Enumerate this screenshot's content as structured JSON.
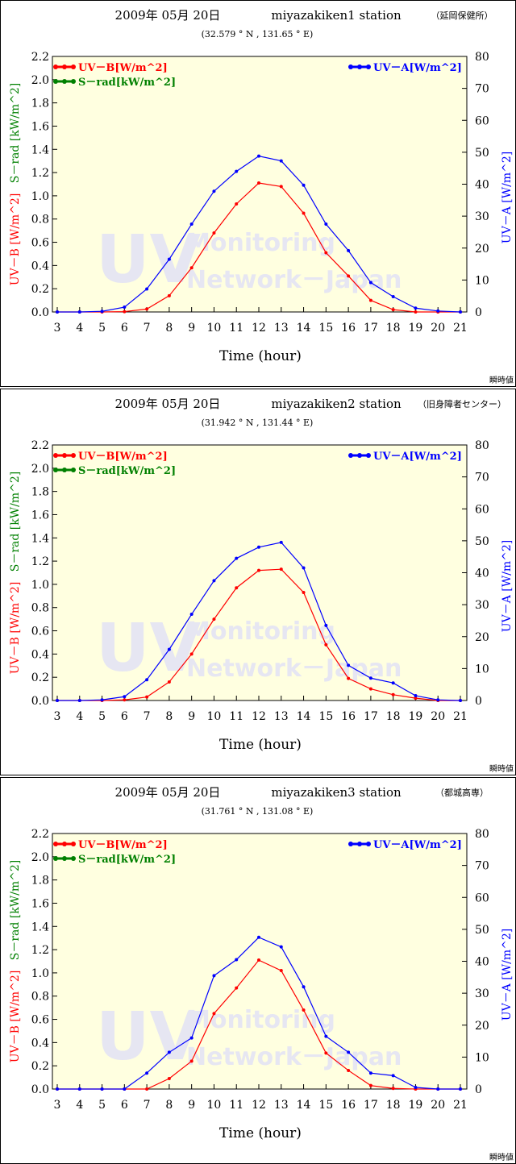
{
  "chart_data": [
    {
      "type": "line",
      "title": "2009年 05月 20日",
      "station": "miyazakiken1 station",
      "location": "（延岡保健所）",
      "coords": "(32.579 ° N , 131.65 ° E)",
      "xlabel": "Time (hour)",
      "ylabel_left_uvb": "UV－B [W/m^2]",
      "ylabel_left_srad": "S－rad [kW/m^2]",
      "ylabel_right": "UV－A [W/m^2]",
      "note": "瞬時値",
      "watermark_big": "UV",
      "watermark_line1": "Monitoring",
      "watermark_line2": "Network－Japan",
      "x": [
        3,
        4,
        5,
        6,
        7,
        8,
        9,
        10,
        11,
        12,
        13,
        14,
        15,
        16,
        17,
        18,
        19,
        20,
        21
      ],
      "xlim": [
        3,
        21
      ],
      "ylim_left": [
        0,
        2.2
      ],
      "ylim_right": [
        0,
        80
      ],
      "yticks_left": [
        "0.0",
        "0.2",
        "0.4",
        "0.6",
        "0.8",
        "1.0",
        "1.2",
        "1.4",
        "1.6",
        "1.8",
        "2.0",
        "2.2"
      ],
      "yticks_right": [
        "0",
        "10",
        "20",
        "30",
        "40",
        "50",
        "60",
        "70",
        "80"
      ],
      "legend": [
        {
          "label": "UV－B[W/m^2]",
          "color": "#ff0000",
          "placement": "top-left"
        },
        {
          "label": "S－rad[kW/m^2]",
          "color": "#008000",
          "placement": "top-left"
        },
        {
          "label": "UV－A[W/m^2]",
          "color": "#0000ff",
          "placement": "top-right"
        }
      ],
      "series": [
        {
          "name": "UV－B[W/m^2]",
          "color": "#ff0000",
          "axis": "left",
          "values": [
            0.0,
            0.0,
            0.0,
            0.003,
            0.025,
            0.14,
            0.38,
            0.68,
            0.93,
            1.11,
            1.08,
            0.85,
            0.51,
            0.31,
            0.1,
            0.02,
            0.0,
            0.0,
            0.0
          ]
        },
        {
          "name": "UV－A[W/m^2]",
          "color": "#0000ff",
          "axis": "right",
          "values": [
            0.0,
            0.0,
            0.2,
            1.5,
            7.2,
            16.5,
            27.5,
            37.8,
            44.0,
            48.8,
            47.3,
            39.7,
            27.5,
            19.2,
            9.2,
            4.8,
            1.2,
            0.3,
            0.0
          ]
        }
      ],
      "grid": false,
      "plot_background": "#ffffe0"
    },
    {
      "type": "line",
      "title": "2009年 05月 20日",
      "station": "miyazakiken2 station",
      "location": "（旧身障者センター）",
      "coords": "(31.942 ° N , 131.44 ° E)",
      "xlabel": "Time (hour)",
      "ylabel_left_uvb": "UV－B [W/m^2]",
      "ylabel_left_srad": "S－rad [kW/m^2]",
      "ylabel_right": "UV－A [W/m^2]",
      "note": "瞬時値",
      "watermark_big": "UV",
      "watermark_line1": "Monitoring",
      "watermark_line2": "Network－Japan",
      "x": [
        3,
        4,
        5,
        6,
        7,
        8,
        9,
        10,
        11,
        12,
        13,
        14,
        15,
        16,
        17,
        18,
        19,
        20,
        21
      ],
      "xlim": [
        3,
        21
      ],
      "ylim_left": [
        0,
        2.2
      ],
      "ylim_right": [
        0,
        80
      ],
      "yticks_left": [
        "0.0",
        "0.2",
        "0.4",
        "0.6",
        "0.8",
        "1.0",
        "1.2",
        "1.4",
        "1.6",
        "1.8",
        "2.0",
        "2.2"
      ],
      "yticks_right": [
        "0",
        "10",
        "20",
        "30",
        "40",
        "50",
        "60",
        "70",
        "80"
      ],
      "legend": [
        {
          "label": "UV－B[W/m^2]",
          "color": "#ff0000",
          "placement": "top-left"
        },
        {
          "label": "S－rad[kW/m^2]",
          "color": "#008000",
          "placement": "top-left"
        },
        {
          "label": "UV－A[W/m^2]",
          "color": "#0000ff",
          "placement": "top-right"
        }
      ],
      "series": [
        {
          "name": "UV－B[W/m^2]",
          "color": "#ff0000",
          "axis": "left",
          "values": [
            0.0,
            0.0,
            0.0,
            0.005,
            0.03,
            0.16,
            0.4,
            0.7,
            0.97,
            1.12,
            1.13,
            0.93,
            0.48,
            0.19,
            0.1,
            0.05,
            0.02,
            0.0,
            0.0
          ]
        },
        {
          "name": "UV－A[W/m^2]",
          "color": "#0000ff",
          "axis": "right",
          "values": [
            0.0,
            0.0,
            0.2,
            1.2,
            6.5,
            16.0,
            27.0,
            37.5,
            44.5,
            48.0,
            49.5,
            41.5,
            23.5,
            11.0,
            7.0,
            5.5,
            1.5,
            0.2,
            0.0
          ]
        }
      ],
      "grid": false,
      "plot_background": "#ffffe0"
    },
    {
      "type": "line",
      "title": "2009年 05月 20日",
      "station": "miyazakiken3 station",
      "location": "（都城高専）",
      "coords": "(31.761 ° N , 131.08 ° E)",
      "xlabel": "Time (hour)",
      "ylabel_left_uvb": "UV－B [W/m^2]",
      "ylabel_left_srad": "S－rad [kW/m^2]",
      "ylabel_right": "UV－A [W/m^2]",
      "note": "瞬時値",
      "watermark_big": "UV",
      "watermark_line1": "Monitoring",
      "watermark_line2": "Network－Japan",
      "x": [
        3,
        4,
        5,
        6,
        7,
        8,
        9,
        10,
        11,
        12,
        13,
        14,
        15,
        16,
        17,
        18,
        19,
        20,
        21
      ],
      "xlim": [
        3,
        21
      ],
      "ylim_left": [
        0,
        2.2
      ],
      "ylim_right": [
        0,
        80
      ],
      "yticks_left": [
        "0.0",
        "0.2",
        "0.4",
        "0.6",
        "0.8",
        "1.0",
        "1.2",
        "1.4",
        "1.6",
        "1.8",
        "2.0",
        "2.2"
      ],
      "yticks_right": [
        "0",
        "10",
        "20",
        "30",
        "40",
        "50",
        "60",
        "70",
        "80"
      ],
      "legend": [
        {
          "label": "UV－B[W/m^2]",
          "color": "#ff0000",
          "placement": "top-left"
        },
        {
          "label": "S－rad[kW/m^2]",
          "color": "#008000",
          "placement": "top-left"
        },
        {
          "label": "UV－A[W/m^2]",
          "color": "#0000ff",
          "placement": "top-right"
        }
      ],
      "series": [
        {
          "name": "UV－B[W/m^2]",
          "color": "#ff0000",
          "axis": "left",
          "values": [
            0.0,
            0.0,
            0.0,
            0.0,
            0.0,
            0.09,
            0.24,
            0.65,
            0.87,
            1.11,
            1.02,
            0.68,
            0.31,
            0.16,
            0.03,
            0.005,
            0.0,
            0.0,
            0.0
          ]
        },
        {
          "name": "UV－A[W/m^2]",
          "color": "#0000ff",
          "axis": "right",
          "values": [
            0.0,
            0.0,
            0.0,
            0.0,
            5.0,
            11.5,
            16.0,
            35.5,
            40.5,
            47.5,
            44.5,
            32.0,
            16.5,
            11.5,
            5.0,
            4.2,
            0.5,
            0.0,
            0.0
          ]
        }
      ],
      "grid": false,
      "plot_background": "#ffffe0"
    }
  ]
}
